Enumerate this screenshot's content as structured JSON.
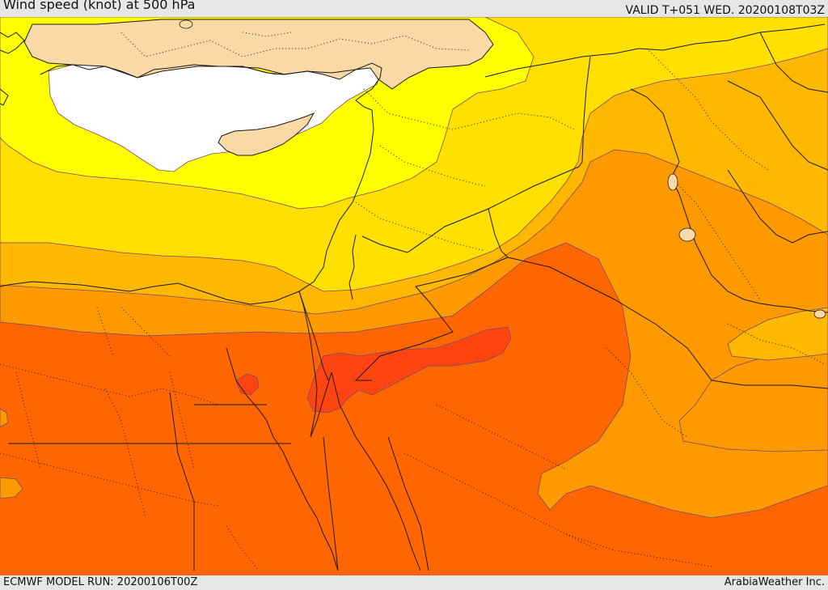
{
  "header": {
    "title": "Wind speed (knot) at 500 hPa",
    "valid_time": "VALID T+051 WED. 20200108T03Z"
  },
  "footer": {
    "model_run": "ECMWF MODEL RUN: 20200106T00Z",
    "credit": "ArabiaWeather Inc."
  },
  "map": {
    "field": "wind speed",
    "level": "500 hPa",
    "units": "knot",
    "fill_colors": {
      "land_background": "#fad9a6",
      "weakest": "#ffffff",
      "band_1": "#ffff00",
      "band_2": "#ffe000",
      "band_3": "#ffb800",
      "band_4": "#ff9900",
      "band_5": "#ff6600",
      "strongest": "#ff4411"
    },
    "border_color": "#1a1a1a",
    "contour_color": "#7a4a6a"
  }
}
